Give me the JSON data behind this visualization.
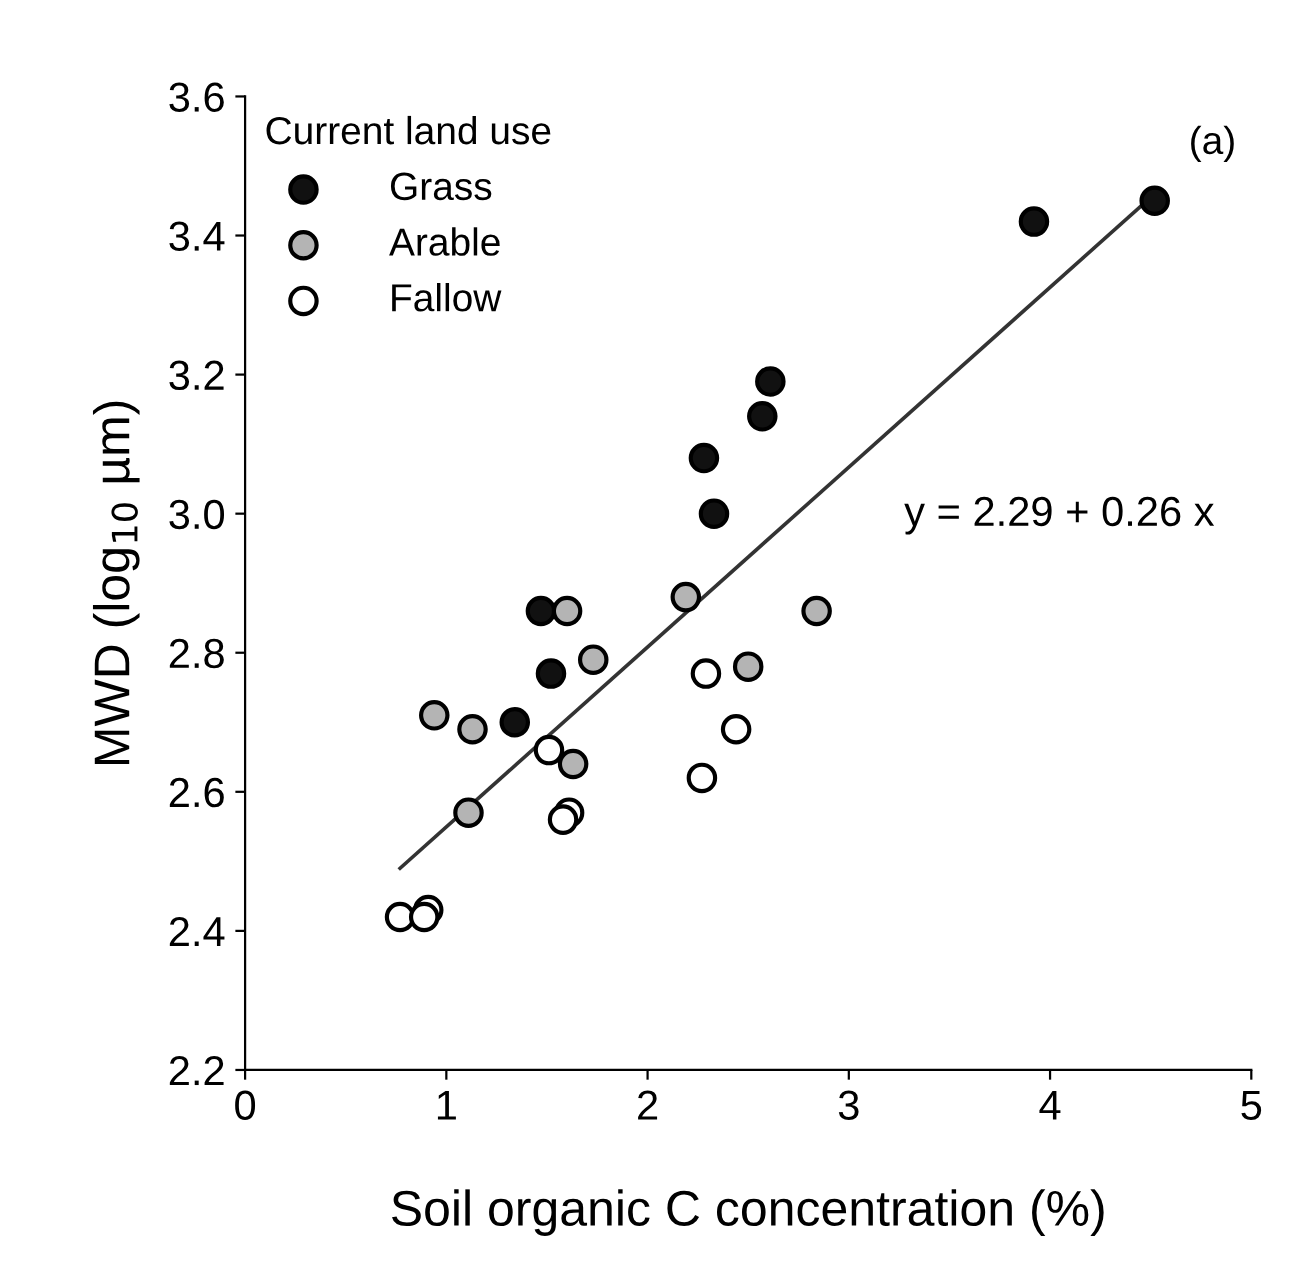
{
  "chart_data": {
    "type": "scatter",
    "xlabel": "Soil organic C concentration (%)",
    "ylabel": "MWD (log$_{10}$ µm)",
    "legend_title": "Current land use",
    "legend": "top left",
    "xlim": [
      0,
      5
    ],
    "ylim": [
      2.2,
      3.6
    ],
    "xticks": [
      0,
      1,
      2,
      3,
      4,
      5
    ],
    "yticks": [
      2.2,
      2.4,
      2.6,
      2.8,
      {
        "value": 3.0,
        "label": "3.0"
      },
      3.2,
      3.4,
      3.6
    ],
    "grid": false,
    "annotations": [
      "(a)",
      "y = 2.29 + 0.26 x"
    ],
    "series": [
      {
        "name": "Grass",
        "marker": "circle",
        "color": "#111111",
        "x": [
          3.92,
          4.52,
          2.61,
          2.57,
          2.28,
          2.33,
          1.47,
          1.52,
          1.34
        ],
        "values": [
          3.42,
          3.45,
          3.19,
          3.14,
          3.08,
          3.0,
          2.86,
          2.77,
          2.7
        ]
      },
      {
        "name": "Arable",
        "marker": "circle",
        "color": "#b4b4b4",
        "x": [
          1.6,
          2.19,
          2.84,
          1.73,
          2.5,
          0.94,
          1.13,
          1.63,
          1.11
        ],
        "values": [
          2.86,
          2.88,
          2.86,
          2.79,
          2.78,
          2.71,
          2.69,
          2.64,
          2.57
        ]
      },
      {
        "name": "Fallow",
        "marker": "circle",
        "color": "#ffffff",
        "x": [
          2.29,
          2.44,
          2.27,
          1.51,
          1.61,
          1.58,
          0.77,
          0.91,
          0.89
        ],
        "values": [
          2.77,
          2.69,
          2.62,
          2.66,
          2.57,
          2.56,
          2.42,
          2.43,
          2.42
        ]
      },
      {
        "type": "line",
        "marker": "none",
        "color": "#333333",
        "x": [
          0.77,
          4.52
        ],
        "values": [
          2.49,
          3.46
        ]
      }
    ]
  }
}
